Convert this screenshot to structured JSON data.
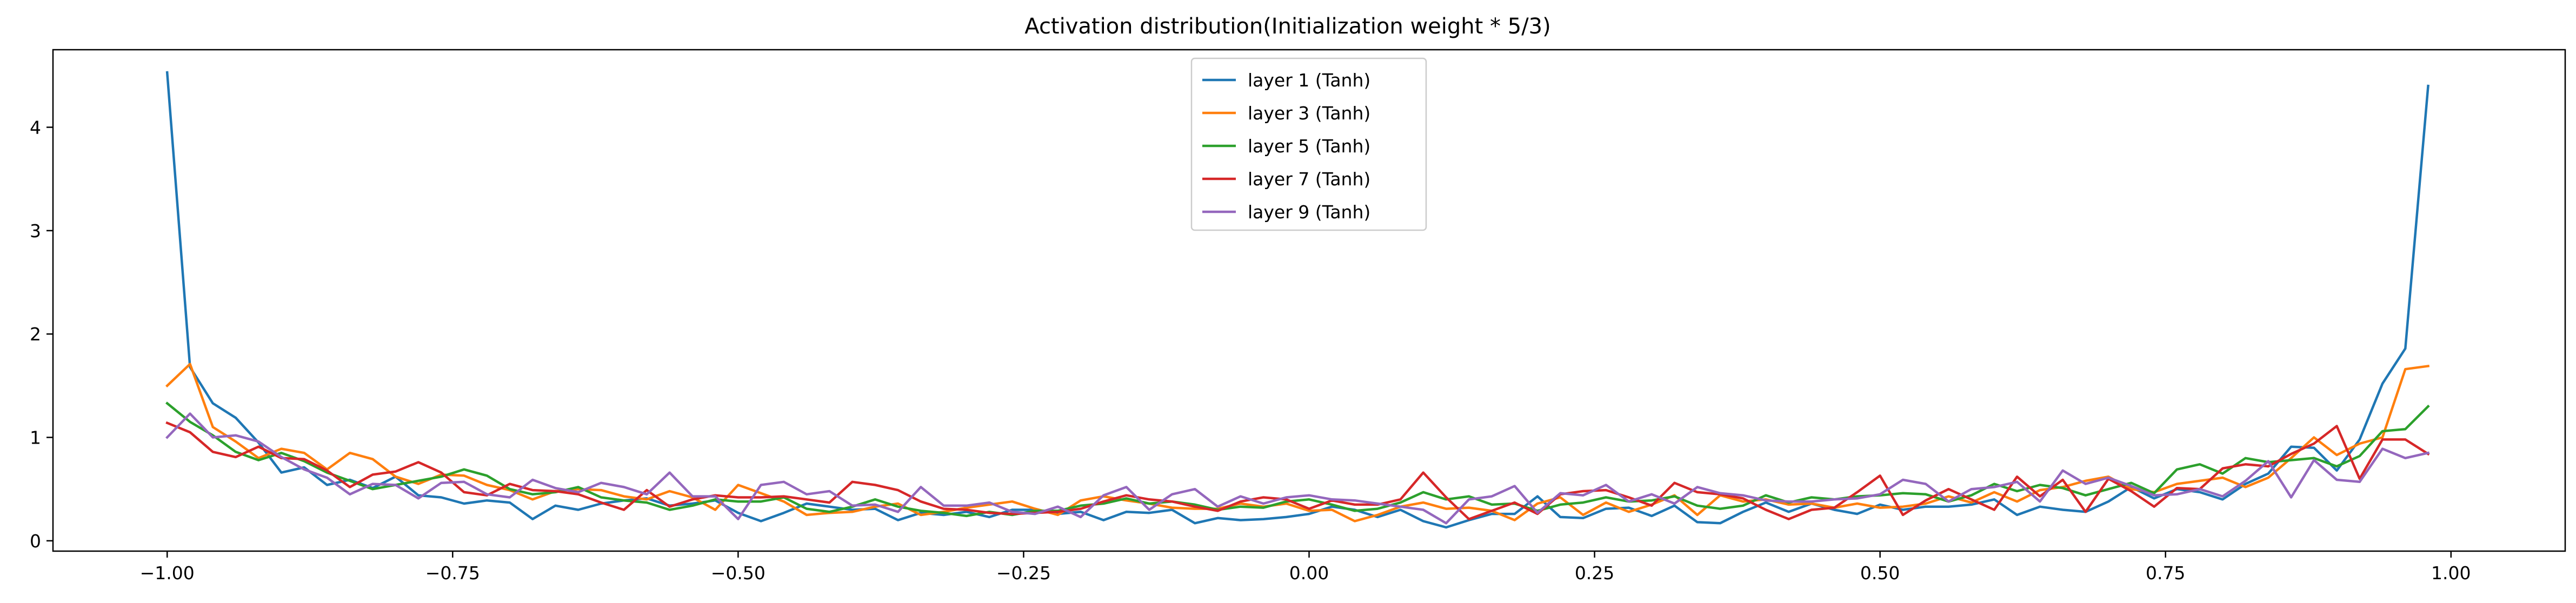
{
  "chart_data": {
    "type": "line",
    "title": "Activation distribution(Initialization weight * 5/3)",
    "xlabel": "",
    "ylabel": "",
    "xlim": [
      -1.1,
      1.1
    ],
    "ylim": [
      -0.1,
      4.75
    ],
    "xticks": [
      -1.0,
      -0.75,
      -0.5,
      -0.25,
      0.0,
      0.25,
      0.5,
      0.75,
      1.0
    ],
    "xtick_labels": [
      "−1.00",
      "−0.75",
      "−0.50",
      "−0.25",
      "0.00",
      "0.25",
      "0.50",
      "0.75",
      "1.00"
    ],
    "yticks": [
      0,
      1,
      2,
      3,
      4
    ],
    "ytick_labels": [
      "0",
      "1",
      "2",
      "3",
      "4"
    ],
    "grid": false,
    "legend_position": "top-center",
    "x": [
      -1.0,
      -0.98,
      -0.96,
      -0.94,
      -0.92,
      -0.9,
      -0.88,
      -0.86,
      -0.84,
      -0.82,
      -0.8,
      -0.78,
      -0.76,
      -0.74,
      -0.72,
      -0.7,
      -0.68,
      -0.66,
      -0.64,
      -0.62,
      -0.6,
      -0.58,
      -0.56,
      -0.54,
      -0.52,
      -0.5,
      -0.48,
      -0.46,
      -0.44,
      -0.42,
      -0.4,
      -0.38,
      -0.36,
      -0.34,
      -0.32,
      -0.3,
      -0.28,
      -0.26,
      -0.24,
      -0.22,
      -0.2,
      -0.18,
      -0.16,
      -0.14,
      -0.12,
      -0.1,
      -0.08,
      -0.06,
      -0.04,
      -0.02,
      0.0,
      0.02,
      0.04,
      0.06,
      0.08,
      0.1,
      0.12,
      0.14,
      0.16,
      0.18,
      0.2,
      0.22,
      0.24,
      0.26,
      0.28,
      0.3,
      0.32,
      0.34,
      0.36,
      0.38,
      0.4,
      0.42,
      0.44,
      0.46,
      0.48,
      0.5,
      0.52,
      0.54,
      0.56,
      0.58,
      0.6,
      0.62,
      0.64,
      0.66,
      0.68,
      0.7,
      0.72,
      0.74,
      0.76,
      0.78,
      0.8,
      0.82,
      0.84,
      0.86,
      0.88,
      0.9,
      0.92,
      0.94,
      0.96,
      0.98
    ],
    "series": [
      {
        "name": "layer 1 (Tanh)",
        "color": "#1f77b4",
        "values": [
          4.53,
          1.68,
          1.33,
          1.19,
          0.95,
          0.66,
          0.71,
          0.54,
          0.59,
          0.51,
          0.62,
          0.44,
          0.42,
          0.36,
          0.39,
          0.37,
          0.21,
          0.34,
          0.3,
          0.36,
          0.39,
          0.41,
          0.34,
          0.36,
          0.39,
          0.27,
          0.19,
          0.27,
          0.36,
          0.33,
          0.3,
          0.31,
          0.2,
          0.27,
          0.25,
          0.28,
          0.23,
          0.3,
          0.3,
          0.26,
          0.28,
          0.2,
          0.28,
          0.27,
          0.3,
          0.17,
          0.22,
          0.2,
          0.21,
          0.23,
          0.26,
          0.33,
          0.3,
          0.23,
          0.3,
          0.19,
          0.13,
          0.2,
          0.26,
          0.26,
          0.43,
          0.23,
          0.22,
          0.31,
          0.32,
          0.24,
          0.34,
          0.18,
          0.17,
          0.28,
          0.37,
          0.28,
          0.36,
          0.3,
          0.26,
          0.35,
          0.3,
          0.33,
          0.33,
          0.35,
          0.4,
          0.25,
          0.33,
          0.3,
          0.28,
          0.38,
          0.52,
          0.41,
          0.5,
          0.47,
          0.4,
          0.55,
          0.65,
          0.91,
          0.9,
          0.68,
          0.98,
          1.52,
          1.86,
          4.4
        ]
      },
      {
        "name": "layer 3 (Tanh)",
        "color": "#ff7f0e",
        "values": [
          1.5,
          1.71,
          1.1,
          0.96,
          0.8,
          0.89,
          0.85,
          0.69,
          0.85,
          0.79,
          0.62,
          0.55,
          0.64,
          0.63,
          0.54,
          0.49,
          0.4,
          0.48,
          0.5,
          0.49,
          0.43,
          0.4,
          0.48,
          0.42,
          0.3,
          0.54,
          0.46,
          0.38,
          0.25,
          0.27,
          0.28,
          0.33,
          0.36,
          0.25,
          0.28,
          0.32,
          0.35,
          0.38,
          0.31,
          0.25,
          0.39,
          0.43,
          0.39,
          0.36,
          0.32,
          0.31,
          0.31,
          0.36,
          0.33,
          0.36,
          0.29,
          0.3,
          0.19,
          0.25,
          0.33,
          0.37,
          0.31,
          0.32,
          0.29,
          0.2,
          0.36,
          0.42,
          0.25,
          0.37,
          0.28,
          0.35,
          0.44,
          0.25,
          0.44,
          0.38,
          0.4,
          0.35,
          0.36,
          0.32,
          0.36,
          0.32,
          0.33,
          0.36,
          0.43,
          0.37,
          0.47,
          0.38,
          0.49,
          0.52,
          0.58,
          0.62,
          0.5,
          0.47,
          0.55,
          0.58,
          0.61,
          0.52,
          0.61,
          0.8,
          1.0,
          0.83,
          0.94,
          1.0,
          1.66,
          1.69
        ]
      },
      {
        "name": "layer 5 (Tanh)",
        "color": "#2ca02c",
        "values": [
          1.33,
          1.15,
          1.02,
          0.86,
          0.78,
          0.85,
          0.77,
          0.66,
          0.58,
          0.5,
          0.54,
          0.58,
          0.62,
          0.69,
          0.63,
          0.5,
          0.45,
          0.47,
          0.52,
          0.42,
          0.39,
          0.37,
          0.3,
          0.34,
          0.4,
          0.38,
          0.38,
          0.42,
          0.31,
          0.28,
          0.33,
          0.4,
          0.33,
          0.29,
          0.27,
          0.24,
          0.28,
          0.25,
          0.29,
          0.29,
          0.34,
          0.36,
          0.41,
          0.36,
          0.38,
          0.35,
          0.3,
          0.33,
          0.32,
          0.38,
          0.4,
          0.35,
          0.29,
          0.31,
          0.37,
          0.47,
          0.4,
          0.43,
          0.35,
          0.36,
          0.29,
          0.35,
          0.37,
          0.42,
          0.38,
          0.39,
          0.43,
          0.34,
          0.31,
          0.34,
          0.44,
          0.37,
          0.42,
          0.4,
          0.43,
          0.44,
          0.46,
          0.45,
          0.38,
          0.44,
          0.55,
          0.48,
          0.54,
          0.51,
          0.44,
          0.5,
          0.56,
          0.46,
          0.69,
          0.74,
          0.65,
          0.8,
          0.76,
          0.78,
          0.8,
          0.72,
          0.82,
          1.06,
          1.08,
          1.3
        ]
      },
      {
        "name": "layer 7 (Tanh)",
        "color": "#d62728",
        "values": [
          1.14,
          1.05,
          0.86,
          0.81,
          0.91,
          0.8,
          0.79,
          0.68,
          0.52,
          0.64,
          0.67,
          0.76,
          0.66,
          0.47,
          0.44,
          0.55,
          0.49,
          0.48,
          0.45,
          0.37,
          0.3,
          0.49,
          0.33,
          0.4,
          0.44,
          0.42,
          0.42,
          0.43,
          0.4,
          0.37,
          0.57,
          0.54,
          0.49,
          0.38,
          0.31,
          0.3,
          0.27,
          0.26,
          0.27,
          0.28,
          0.31,
          0.38,
          0.44,
          0.4,
          0.38,
          0.33,
          0.29,
          0.38,
          0.42,
          0.4,
          0.31,
          0.39,
          0.35,
          0.35,
          0.4,
          0.66,
          0.42,
          0.21,
          0.29,
          0.37,
          0.26,
          0.45,
          0.48,
          0.49,
          0.42,
          0.34,
          0.56,
          0.47,
          0.45,
          0.41,
          0.3,
          0.21,
          0.3,
          0.32,
          0.47,
          0.63,
          0.25,
          0.39,
          0.5,
          0.4,
          0.3,
          0.62,
          0.43,
          0.59,
          0.28,
          0.6,
          0.48,
          0.33,
          0.51,
          0.5,
          0.7,
          0.74,
          0.72,
          0.84,
          0.94,
          1.11,
          0.6,
          0.98,
          0.98,
          0.84
        ]
      },
      {
        "name": "layer 9 (Tanh)",
        "color": "#9467bd",
        "values": [
          1.0,
          1.23,
          1.0,
          1.02,
          0.96,
          0.81,
          0.69,
          0.61,
          0.45,
          0.55,
          0.54,
          0.41,
          0.56,
          0.57,
          0.45,
          0.42,
          0.59,
          0.51,
          0.47,
          0.56,
          0.52,
          0.45,
          0.66,
          0.43,
          0.43,
          0.21,
          0.54,
          0.57,
          0.45,
          0.48,
          0.34,
          0.35,
          0.28,
          0.52,
          0.34,
          0.34,
          0.37,
          0.28,
          0.26,
          0.33,
          0.23,
          0.44,
          0.52,
          0.3,
          0.45,
          0.5,
          0.33,
          0.43,
          0.36,
          0.42,
          0.44,
          0.4,
          0.39,
          0.36,
          0.33,
          0.3,
          0.17,
          0.4,
          0.43,
          0.53,
          0.27,
          0.46,
          0.44,
          0.54,
          0.38,
          0.45,
          0.36,
          0.52,
          0.46,
          0.44,
          0.39,
          0.38,
          0.38,
          0.4,
          0.41,
          0.45,
          0.59,
          0.55,
          0.38,
          0.5,
          0.52,
          0.57,
          0.38,
          0.68,
          0.55,
          0.61,
          0.53,
          0.44,
          0.45,
          0.5,
          0.43,
          0.58,
          0.77,
          0.42,
          0.78,
          0.59,
          0.57,
          0.89,
          0.8,
          0.85
        ]
      }
    ]
  }
}
